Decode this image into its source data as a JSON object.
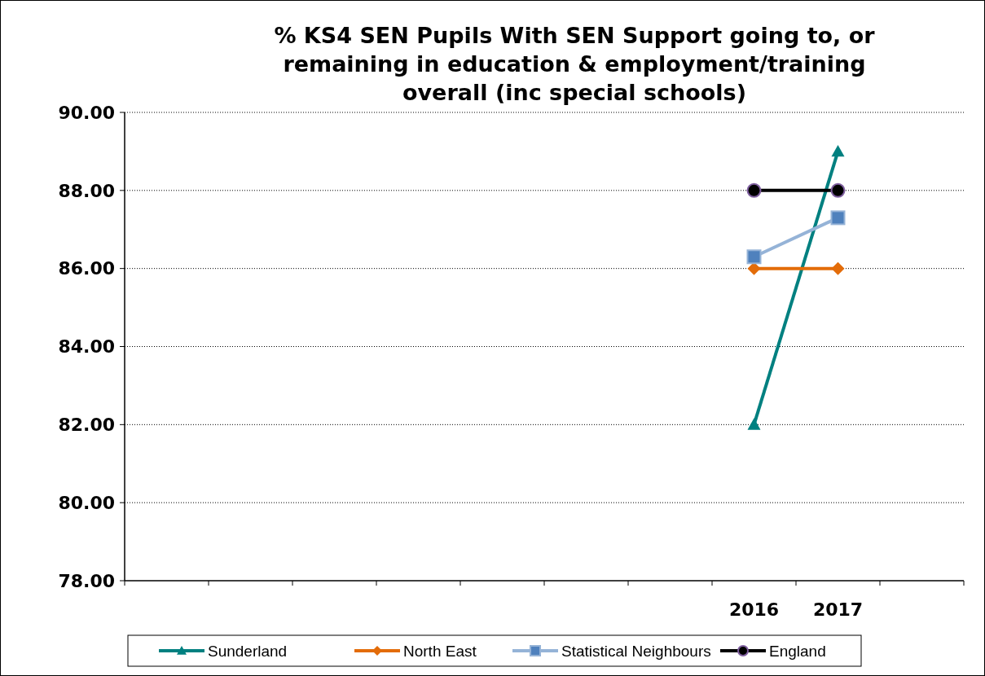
{
  "chart_data": {
    "type": "line",
    "title": "% KS4 SEN Pupils With SEN Support going to, or remaining in education & employment/training overall (inc special schools)",
    "categories": [
      null,
      null,
      null,
      null,
      null,
      null,
      null,
      "2016",
      "2017",
      null
    ],
    "series": [
      {
        "name": "Sunderland",
        "color": "#008080",
        "marker": "triangle",
        "values": [
          null,
          null,
          null,
          null,
          null,
          null,
          null,
          82,
          89,
          null
        ]
      },
      {
        "name": "North East",
        "color": "#e36c09",
        "marker": "diamond",
        "values": [
          null,
          null,
          null,
          null,
          null,
          null,
          null,
          86,
          86,
          null
        ]
      },
      {
        "name": "Statistical Neighbours",
        "color": "#95b3d7",
        "marker": "square",
        "values": [
          null,
          null,
          null,
          null,
          null,
          null,
          null,
          86.3,
          87.3,
          null
        ]
      },
      {
        "name": "England",
        "color": "#000000",
        "marker": "circle",
        "values": [
          null,
          null,
          null,
          null,
          null,
          null,
          null,
          88,
          88,
          null
        ]
      }
    ],
    "ylim": [
      78,
      90
    ],
    "yticks": [
      {
        "value": 78,
        "label": "78.00"
      },
      {
        "value": 80,
        "label": "80.00"
      },
      {
        "value": 82,
        "label": "82.00"
      },
      {
        "value": 84,
        "label": "84.00"
      },
      {
        "value": 86,
        "label": "86.00"
      },
      {
        "value": 88,
        "label": "88.00"
      },
      {
        "value": 90,
        "label": "90.00"
      }
    ],
    "grid": "y",
    "legend": "bottom"
  }
}
